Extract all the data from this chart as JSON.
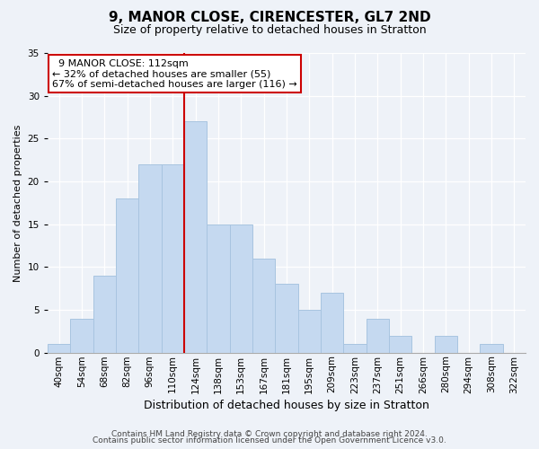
{
  "title": "9, MANOR CLOSE, CIRENCESTER, GL7 2ND",
  "subtitle": "Size of property relative to detached houses in Stratton",
  "xlabel": "Distribution of detached houses by size in Stratton",
  "ylabel": "Number of detached properties",
  "bar_labels": [
    "40sqm",
    "54sqm",
    "68sqm",
    "82sqm",
    "96sqm",
    "110sqm",
    "124sqm",
    "138sqm",
    "153sqm",
    "167sqm",
    "181sqm",
    "195sqm",
    "209sqm",
    "223sqm",
    "237sqm",
    "251sqm",
    "266sqm",
    "280sqm",
    "294sqm",
    "308sqm",
    "322sqm"
  ],
  "bar_values": [
    1,
    4,
    9,
    18,
    22,
    22,
    27,
    15,
    15,
    11,
    8,
    5,
    7,
    1,
    4,
    2,
    0,
    2,
    0,
    1,
    0
  ],
  "bar_color": "#c5d9f0",
  "bar_edge_color": "#a8c4e0",
  "vline_x": 5.5,
  "vline_color": "#cc0000",
  "ylim": [
    0,
    35
  ],
  "yticks": [
    0,
    5,
    10,
    15,
    20,
    25,
    30,
    35
  ],
  "annotation_title": "9 MANOR CLOSE: 112sqm",
  "annotation_line1": "← 32% of detached houses are smaller (55)",
  "annotation_line2": "67% of semi-detached houses are larger (116) →",
  "annotation_box_color": "#ffffff",
  "annotation_box_edge": "#cc0000",
  "footer1": "Contains HM Land Registry data © Crown copyright and database right 2024.",
  "footer2": "Contains public sector information licensed under the Open Government Licence v3.0.",
  "background_color": "#eef2f8",
  "grid_color": "#ffffff",
  "title_fontsize": 11,
  "subtitle_fontsize": 9,
  "xlabel_fontsize": 9,
  "ylabel_fontsize": 8,
  "tick_fontsize": 7.5,
  "footer_fontsize": 6.5,
  "ann_fontsize": 8
}
